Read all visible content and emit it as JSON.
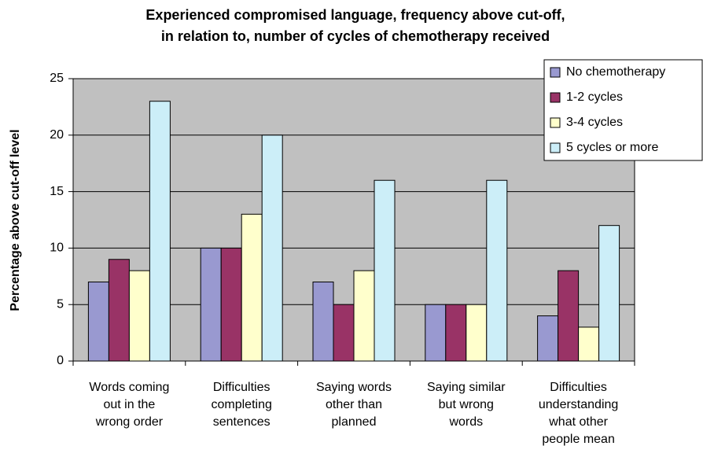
{
  "chart_data": {
    "type": "bar",
    "title": [
      "Experienced compromised language, frequency above cut-off,",
      "in relation to, number of cycles of chemotherapy received"
    ],
    "y_label": "Percentage above cut-off level",
    "categories": [
      [
        "Words coming",
        "out in the",
        "wrong order"
      ],
      [
        "Difficulties",
        "completing",
        "sentences"
      ],
      [
        "Saying words",
        "other than",
        "planned"
      ],
      [
        "Saying similar",
        "but wrong",
        "words"
      ],
      [
        "Difficulties",
        "understanding",
        "what other",
        "people mean"
      ]
    ],
    "series": [
      {
        "name": "No chemotherapy",
        "color": "#9999d0",
        "values": [
          7,
          10,
          7,
          5,
          4
        ]
      },
      {
        "name": "1-2 cycles",
        "color": "#993366",
        "values": [
          9,
          10,
          5,
          5,
          8
        ]
      },
      {
        "name": "3-4 cycles",
        "color": "#ffffcc",
        "values": [
          8,
          13,
          8,
          5,
          3
        ]
      },
      {
        "name": "5 cycles or more",
        "color": "#cceef8",
        "values": [
          23,
          20,
          16,
          16,
          12
        ]
      }
    ],
    "ylim": [
      0,
      25
    ],
    "yticks": [
      0,
      5,
      10,
      15,
      20,
      25
    ],
    "grid": true,
    "legend": "top-right"
  }
}
